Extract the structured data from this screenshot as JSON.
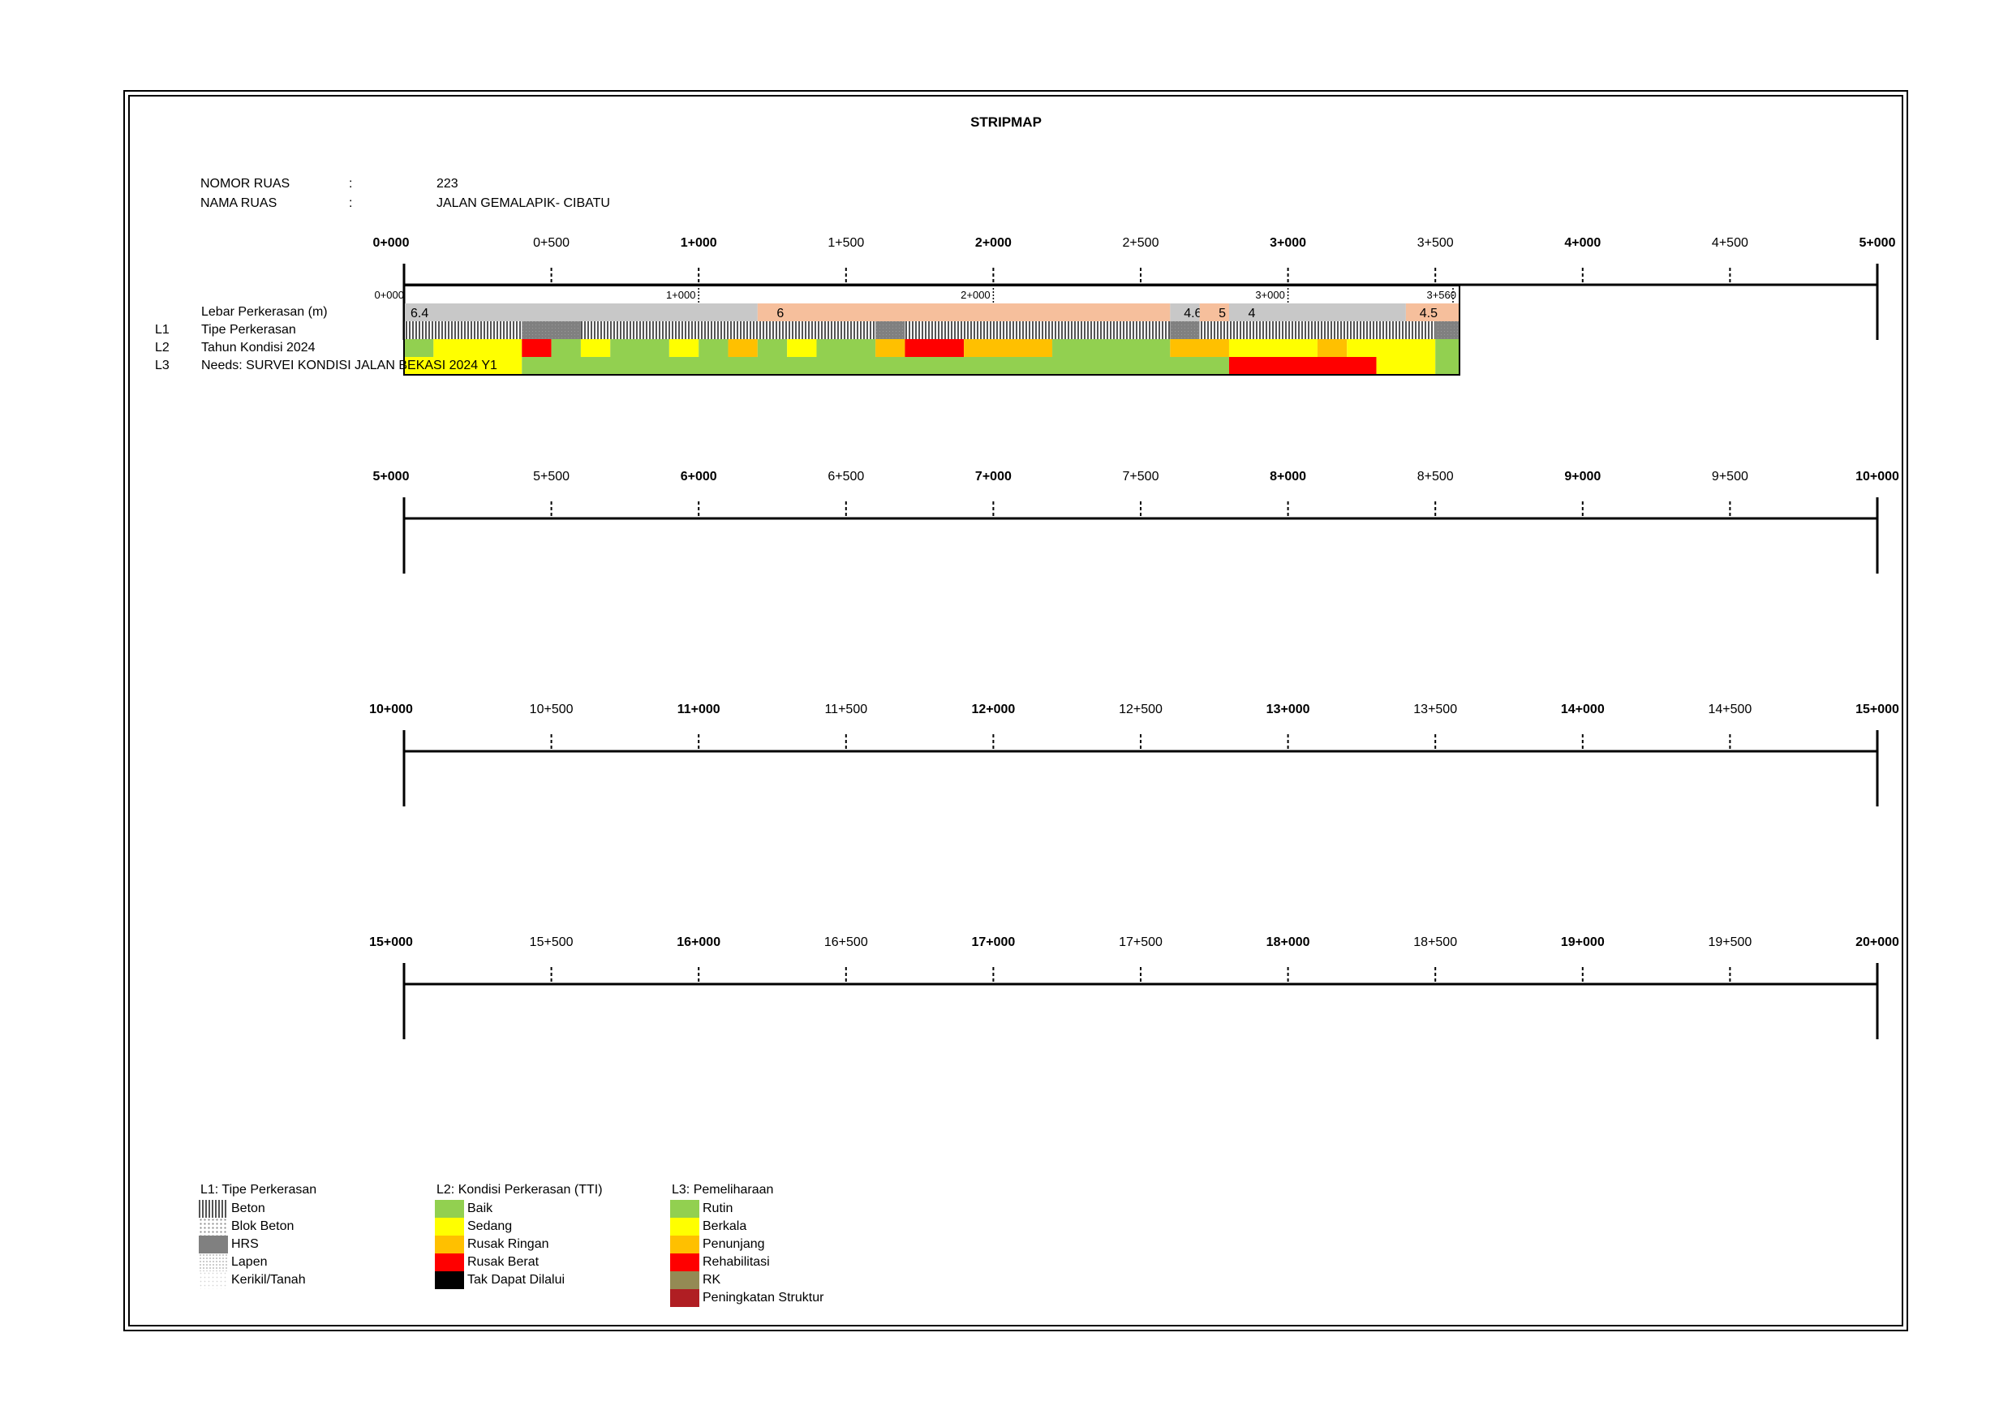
{
  "title": "STRIPMAP",
  "info": {
    "nomor_label": "NOMOR RUAS",
    "nomor_sep": ":",
    "nomor_value": "223",
    "nama_label": "NAMA RUAS",
    "nama_sep": ":",
    "nama_value": "JALAN GEMALAPIK- CIBATU"
  },
  "rows": [
    {
      "major": [
        "0+000",
        "1+000",
        "2+000",
        "3+000",
        "4+000",
        "5+000"
      ],
      "minor": [
        "0+500",
        "1+500",
        "2+500",
        "3+500",
        "4+500"
      ]
    },
    {
      "major": [
        "5+000",
        "6+000",
        "7+000",
        "8+000",
        "9+000",
        "10+000"
      ],
      "minor": [
        "5+500",
        "6+500",
        "7+500",
        "8+500",
        "9+500"
      ]
    },
    {
      "major": [
        "10+000",
        "11+000",
        "12+000",
        "13+000",
        "14+000",
        "15+000"
      ],
      "minor": [
        "10+500",
        "11+500",
        "12+500",
        "13+500",
        "14+500"
      ]
    },
    {
      "major": [
        "15+000",
        "16+000",
        "17+000",
        "18+000",
        "19+000",
        "20+000"
      ],
      "minor": [
        "15+500",
        "16+500",
        "17+500",
        "18+500",
        "19+500"
      ]
    }
  ],
  "layer_labels": {
    "width_label": "Lebar Perkerasan (m)",
    "l1_code": "L1",
    "l1_label": "Tipe Perkerasan",
    "l2_code": "L2",
    "l2_label": "Tahun Kondisi 2024",
    "l3_code": "L3",
    "l3_label": "Needs: SURVEI KONDISI JALAN BEKASI 2024 Y1"
  },
  "chart_data": {
    "type": "stripmap",
    "road_end_km": 3.56,
    "segment_ticks": [
      {
        "km": 0,
        "label": "0+000"
      },
      {
        "km": 1,
        "label": "1+000"
      },
      {
        "km": 2,
        "label": "2+000"
      },
      {
        "km": 3,
        "label": "3+000"
      },
      {
        "km": 3.56,
        "label": "3+560"
      }
    ],
    "width": [
      {
        "from": 0,
        "to": 1.2,
        "value": "6.4",
        "color": "#c8c8c8"
      },
      {
        "from": 1.2,
        "to": 2.6,
        "value": "6",
        "color": "#f6bf9c"
      },
      {
        "from": 2.6,
        "to": 2.7,
        "value": "4.6",
        "color": "#c8c8c8"
      },
      {
        "from": 2.7,
        "to": 2.8,
        "value": "5",
        "color": "#f6bf9c"
      },
      {
        "from": 2.8,
        "to": 3.4,
        "value": "4",
        "color": "#c8c8c8"
      },
      {
        "from": 3.4,
        "to": 3.6,
        "value": "4.5",
        "color": "#f6bf9c"
      }
    ],
    "pavement_type": [
      {
        "from": 0,
        "to": 0.4,
        "type": "Beton"
      },
      {
        "from": 0.4,
        "to": 0.6,
        "type": "HRS"
      },
      {
        "from": 0.6,
        "to": 1.6,
        "type": "Beton"
      },
      {
        "from": 1.6,
        "to": 1.7,
        "type": "HRS"
      },
      {
        "from": 1.7,
        "to": 2.6,
        "type": "Beton"
      },
      {
        "from": 2.6,
        "to": 2.7,
        "type": "HRS"
      },
      {
        "from": 2.7,
        "to": 3.5,
        "type": "Beton"
      },
      {
        "from": 3.5,
        "to": 3.6,
        "type": "HRS"
      }
    ],
    "condition_2024": [
      {
        "from": 0,
        "to": 0.1,
        "class": "Baik"
      },
      {
        "from": 0.1,
        "to": 0.4,
        "class": "Sedang"
      },
      {
        "from": 0.4,
        "to": 0.5,
        "class": "Rusak Berat"
      },
      {
        "from": 0.5,
        "to": 0.6,
        "class": "Baik"
      },
      {
        "from": 0.6,
        "to": 0.7,
        "class": "Sedang"
      },
      {
        "from": 0.7,
        "to": 0.9,
        "class": "Baik"
      },
      {
        "from": 0.9,
        "to": 1.0,
        "class": "Sedang"
      },
      {
        "from": 1.0,
        "to": 1.1,
        "class": "Baik"
      },
      {
        "from": 1.1,
        "to": 1.2,
        "class": "Rusak Ringan"
      },
      {
        "from": 1.2,
        "to": 1.3,
        "class": "Baik"
      },
      {
        "from": 1.3,
        "to": 1.4,
        "class": "Sedang"
      },
      {
        "from": 1.4,
        "to": 1.6,
        "class": "Baik"
      },
      {
        "from": 1.6,
        "to": 1.7,
        "class": "Rusak Ringan"
      },
      {
        "from": 1.7,
        "to": 1.9,
        "class": "Rusak Berat"
      },
      {
        "from": 1.9,
        "to": 2.2,
        "class": "Rusak Ringan"
      },
      {
        "from": 2.2,
        "to": 2.6,
        "class": "Baik"
      },
      {
        "from": 2.6,
        "to": 2.8,
        "class": "Rusak Ringan"
      },
      {
        "from": 2.8,
        "to": 3.1,
        "class": "Sedang"
      },
      {
        "from": 3.1,
        "to": 3.2,
        "class": "Rusak Ringan"
      },
      {
        "from": 3.2,
        "to": 3.5,
        "class": "Sedang"
      },
      {
        "from": 3.5,
        "to": 3.6,
        "class": "Baik"
      }
    ],
    "needs_2024": [
      {
        "from": 0,
        "to": 0.4,
        "class": "Berkala"
      },
      {
        "from": 0.4,
        "to": 2.8,
        "class": "Rutin"
      },
      {
        "from": 2.8,
        "to": 3.3,
        "class": "Rehabilitasi"
      },
      {
        "from": 3.3,
        "to": 3.5,
        "class": "Berkala"
      },
      {
        "from": 3.5,
        "to": 3.6,
        "class": "Rutin"
      }
    ]
  },
  "legend": {
    "l1": {
      "title": "L1: Tipe Perkerasan",
      "items": [
        {
          "label": "Beton",
          "pattern": "beton"
        },
        {
          "label": "Blok Beton",
          "pattern": "blok"
        },
        {
          "label": "HRS",
          "pattern": "hrs"
        },
        {
          "label": "Lapen",
          "pattern": "lapen"
        },
        {
          "label": "Kerikil/Tanah",
          "pattern": "kerikil"
        }
      ]
    },
    "l2": {
      "title": "L2: Kondisi Perkerasan (TTI)",
      "items": [
        {
          "label": "Baik",
          "color": "#92d050"
        },
        {
          "label": "Sedang",
          "color": "#ffff00"
        },
        {
          "label": "Rusak Ringan",
          "color": "#ffc000"
        },
        {
          "label": "Rusak Berat",
          "color": "#ff0000"
        },
        {
          "label": "Tak Dapat Dilalui",
          "color": "#000000"
        }
      ]
    },
    "l3": {
      "title": "L3: Pemeliharaan",
      "items": [
        {
          "label": "Rutin",
          "color": "#92d050"
        },
        {
          "label": "Berkala",
          "color": "#ffff00"
        },
        {
          "label": "Penunjang",
          "color": "#ffc000"
        },
        {
          "label": "Rehabilitasi",
          "color": "#ff0000"
        },
        {
          "label": "RK",
          "color": "#948a54"
        },
        {
          "label": "Peningkatan Struktur",
          "color": "#b01e23"
        }
      ]
    }
  }
}
